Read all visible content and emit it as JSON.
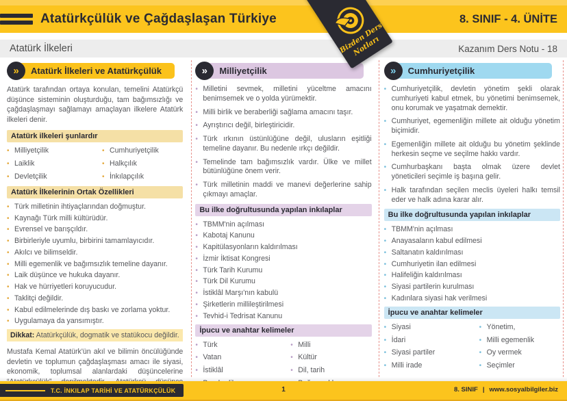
{
  "header": {
    "title": "Atatürkçülük ve Çağdaşlaşan Türkiye",
    "badge": "8. SINIF - 4. ÜNİTE"
  },
  "subheader": {
    "left": "Atatürk İlkeleri",
    "right": "Kazanım Ders Notu - 18"
  },
  "ribbon": {
    "line1": "Bizden Ders",
    "line2": "Notları"
  },
  "icons": {
    "chevron": "»",
    "bullet": "•",
    "menu_icon": "two-bars",
    "logo": "dart-target"
  },
  "colors": {
    "accent_yellow": "#fcc41d",
    "top_strip_yellow": "#fdd052",
    "dark_navy": "#2a2a32",
    "gray_bar": "#ededed",
    "body_text": "#56575b",
    "separator_dashed": "#e8938d",
    "footer_edge": "#e6a817"
  },
  "columns": [
    {
      "id": "ataturk-ilkeleri",
      "title": "Atatürk İlkeleri ve Atatürkçülük",
      "theme": {
        "pill_bg": "#fbc21b",
        "chevron_glyph": "#fbc21b",
        "band_bg": "#f5e0a6",
        "bullet": "#e4a93c",
        "highlight_bg": "#fbe8ac"
      },
      "sections": [
        {
          "type": "paragraph",
          "text": "Atatürk tarafından ortaya konulan, temelini Atatürkçü düşünce sisteminin oluşturduğu, tam bağımsızlığı ve çağdaşlaşmayı sağlamayı amaçlayan ilkelere Atatürk ilkeleri denir."
        },
        {
          "type": "band",
          "text": "Atatürk ilkeleri şunlardır"
        },
        {
          "type": "two_col_list",
          "left": [
            "Milliyetçilik",
            "Laiklik",
            "Devletçilik"
          ],
          "right": [
            "Cumhuriyetçilik",
            "Halkçılık",
            "İnkılapçılık"
          ]
        },
        {
          "type": "band",
          "text": "Atatürk İlkelerinin Ortak Özellikleri"
        },
        {
          "type": "bullets",
          "density": "compact",
          "items": [
            "Türk milletinin ihtiyaçlarından doğmuştur.",
            "Kaynağı Türk milli kültürüdür.",
            "Evrensel ve barışçıldır.",
            "Birbirleriyle uyumlu, birbirini tamamlayıcıdır.",
            "Akılcı ve bilimseldir.",
            "Milli egemenlik ve bağımsızlık temeline dayanır.",
            "Laik düşünce ve hukuka dayanır.",
            "Hak ve hürriyetleri koruyucudur.",
            "Taklitçi değildir.",
            "Kabul edilmelerinde dış baskı ve zorlama yoktur.",
            "Uygulamaya da yansımıştır."
          ]
        },
        {
          "type": "highlight",
          "label": "Dikkat:",
          "text": " Atatürkçülük, dogmatik ve statükocu değildir."
        },
        {
          "type": "paragraph",
          "text": "Mustafa Kemal Atatürk'ün akıl ve bilimin öncülüğünde devletin ve toplumun çağdaşlaşması amacı ile siyasi, ekonomik, toplumsal alanlardaki düşüncelerine “Atatürkçülük” denilmektedir. Atatürkçü düşünce sisteminin temeli Mustafa Kemal Atatürk önderliğinde yapılan inkılaplar ve Atatürk ilkeleridir."
        }
      ]
    },
    {
      "id": "milliyetcilik",
      "title": "Milliyetçilik",
      "theme": {
        "pill_bg": "#dcc7e1",
        "chevron_glyph": "#ffffff",
        "band_bg": "#e4d3e8",
        "bullet": "#b79cc6",
        "highlight_bg": "#e4d3e8"
      },
      "sections": [
        {
          "type": "bullets",
          "density": "spaced",
          "items": [
            "Milletini sevmek, milletini yüceltme amacını benimsemek ve o yolda yürümektir.",
            "Milli birlik ve beraberliği sağlama amacını taşır.",
            "Ayrıştırıcı değil, birleştiricidir.",
            "Türk ırkının üstünlüğüne değil, ulusların eşitliği temeline dayanır. Bu nedenle ırkçı değildir.",
            "Temelinde tam bağımsızlık vardır. Ülke ve millet bütünlüğüne önem verir.",
            "Türk milletinin maddi ve manevi değerlerine sahip çıkmayı amaçlar."
          ]
        },
        {
          "type": "band",
          "text": "Bu ilke doğrultusunda yapılan inkılaplar"
        },
        {
          "type": "bullets",
          "density": "compact",
          "items": [
            "TBMM'nin açılması",
            "Kabotaj Kanunu",
            "Kapitülasyonların kaldırılması",
            "İzmir İktisat Kongresi",
            "Türk Tarih Kurumu",
            "Türk Dil Kurumu",
            "İstiklâl Marşı'nın kabulü",
            "Şirketlerin millileştirilmesi",
            "Tevhid-i Tedrisat Kanunu"
          ]
        },
        {
          "type": "band",
          "text": "İpucu ve anahtar kelimeler"
        },
        {
          "type": "two_col_list",
          "left": [
            "Türk",
            "Vatan",
            "İstiklâl",
            "Beraberlik"
          ],
          "right": [
            "Milli",
            "Kültür",
            "Dil, tarih",
            "Bağımsızlık"
          ]
        }
      ]
    },
    {
      "id": "cumhuriyetcilik",
      "title": "Cumhuriyetçilik",
      "theme": {
        "pill_bg": "#9fd9f0",
        "chevron_glyph": "#7fd2f0",
        "band_bg": "#cbe6f4",
        "bullet": "#77bedc",
        "highlight_bg": "#cbe6f4"
      },
      "sections": [
        {
          "type": "bullets",
          "density": "spaced",
          "items": [
            "Cumhuriyetçilik, devletin yönetim şekli olarak cumhuriyeti kabul etmek, bu yönetimi benimsemek, onu korumak ve yaşatmak demektir.",
            "Cumhuriyet, egemenliğin millete ait olduğu yönetim biçimidir.",
            "Egemenliğin millete ait olduğu bu yönetim şeklinde herkesin seçme ve seçilme hakkı vardır.",
            "Cumhurbaşkanı başta olmak üzere devlet yöneticileri seçimle iş başına gelir.",
            "Halk tarafından seçilen meclis üyeleri halkı temsil eder ve halk adına karar alır."
          ]
        },
        {
          "type": "band",
          "text": "Bu ilke doğrultusunda yapılan inkılaplar"
        },
        {
          "type": "bullets",
          "density": "compact",
          "items": [
            "TBMM'nin açılması",
            "Anayasaların kabul edilmesi",
            "Saltanatın kaldırılması",
            "Cumhuriyetin ilan edilmesi",
            "Halifeliğin kaldırılması",
            "Siyasi partilerin kurulması",
            "Kadınlara siyasi hak verilmesi"
          ]
        },
        {
          "type": "band",
          "text": "İpucu ve anahtar kelimeler"
        },
        {
          "type": "two_col_list",
          "left": [
            "Siyasi",
            "İdari",
            "Siyasi partiler",
            "Milli irade"
          ],
          "right": [
            "Yönetim,",
            "Milli egemenlik",
            "Oy vermek",
            "Seçimler"
          ]
        }
      ]
    }
  ],
  "footer": {
    "left_label": "T.C. İNKILAP TARİHİ VE ATATÜRKÇÜLÜK",
    "page_number": "1",
    "grade": "8. SINIF",
    "separator": "|",
    "site": "www.sosyalbilgiler.biz"
  }
}
